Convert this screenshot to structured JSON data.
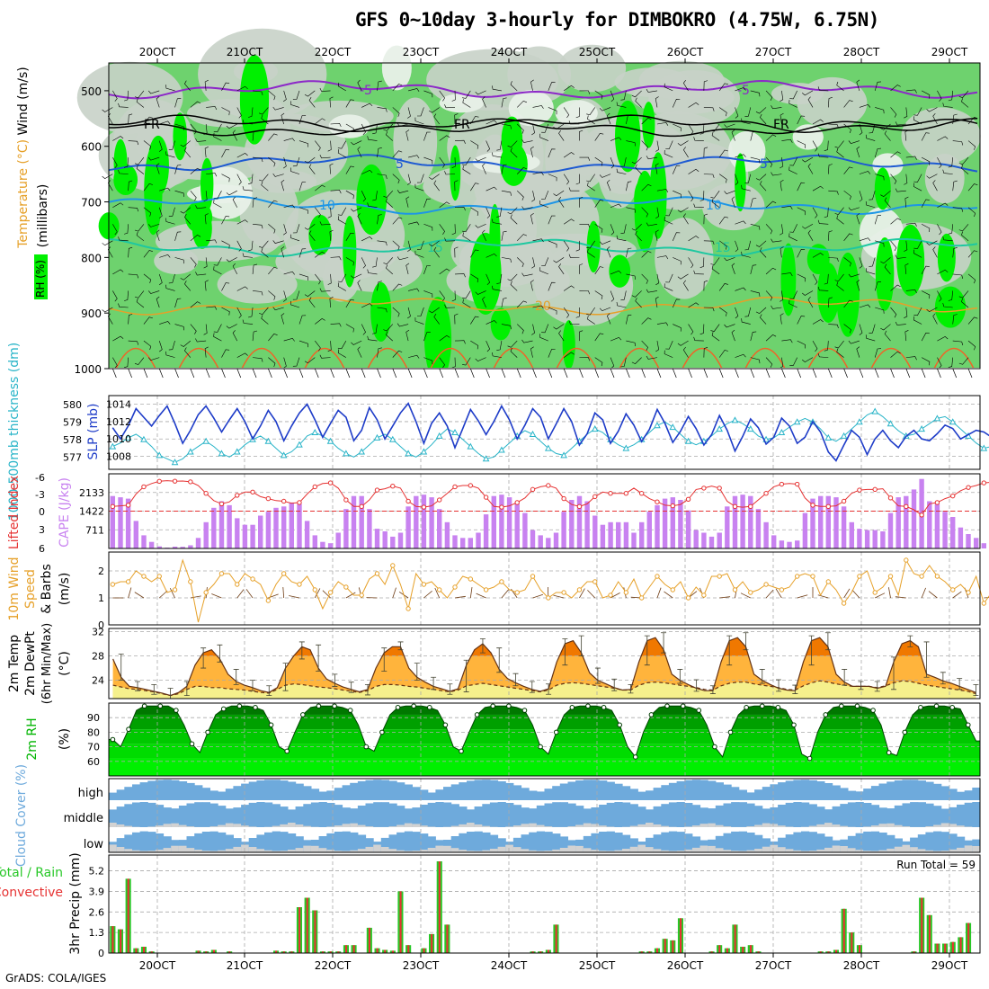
{
  "title": "GFS 0~10day 3-hourly for DIMBOKRO (4.75W, 6.75N)",
  "footer": "GrADS: COLA/IGES",
  "colors": {
    "rh_light": "#c8d2c8",
    "rh_green": "#6ed26e",
    "rh_bright": "#00f000",
    "slp": "#1e3cc8",
    "thickness": "#28b4c8",
    "lifted_index": "#e63232",
    "cape": "#c882f0",
    "wind10m": "#e6a028",
    "temp_hot": "#f07800",
    "temp_mid": "#ffb43c",
    "dewpt_fill": "#f5f08c",
    "rh2m": "#00b400",
    "cloud": "#6eaadc",
    "precip_total": "#28c828",
    "precip_conv": "#e63232"
  },
  "chart_data": [
    {
      "type": "heatmap",
      "name": "upper-air",
      "x_dates": [
        "20OCT",
        "21OCT",
        "22OCT",
        "23OCT",
        "24OCT",
        "25OCT",
        "26OCT",
        "27OCT",
        "28OCT",
        "29OCT"
      ],
      "y_ticks": [
        500,
        600,
        700,
        800,
        900,
        1000
      ],
      "ylabel": "(millibars)",
      "labels": {
        "wind": "Wind (m/s)",
        "temperature": "Temperature (°C)",
        "rh": "RH (%)"
      },
      "isotherm_labels": [
        "-5",
        "FR",
        "5",
        "10",
        "15",
        "20"
      ],
      "ylim": [
        1000,
        450
      ]
    },
    {
      "type": "line",
      "name": "slp-thickness",
      "left_ylabel": "1000-500mb thickness (dm)",
      "right_ylabel": "SLP (mb)",
      "left_ticks": [
        577,
        578,
        579,
        580
      ],
      "right_ticks": [
        1008,
        1010,
        1012,
        1014
      ],
      "series": [
        {
          "name": "SLP",
          "values": [
            1011.3,
            1010.0,
            1011.5,
            1013.5,
            1012.5,
            1011.5,
            1012.7,
            1013.8,
            1011.8,
            1009.5,
            1011.0,
            1012.8,
            1013.8,
            1012.4,
            1010.8,
            1012.2,
            1013.5,
            1012.0,
            1010.0,
            1011.5,
            1013.3,
            1012.0,
            1009.8,
            1011.5,
            1013.0,
            1014.0,
            1012.2,
            1010.2,
            1011.8,
            1013.3,
            1012.5,
            1009.8,
            1011.0,
            1013.6,
            1012.2,
            1010.0,
            1011.5,
            1013.0,
            1014.1,
            1012.0,
            1009.5,
            1011.8,
            1013.0,
            1011.5,
            1009.0,
            1011.2,
            1013.4,
            1012.1,
            1010.5,
            1012.0,
            1013.8,
            1012.2,
            1010.0,
            1011.6,
            1013.5,
            1012.5,
            1010.0,
            1011.7,
            1013.5,
            1012.0,
            1009.3,
            1010.6,
            1013.0,
            1012.2,
            1009.5,
            1010.9,
            1012.9,
            1011.6,
            1009.7,
            1011.1,
            1013.4,
            1011.8,
            1009.6,
            1010.9,
            1012.6,
            1011.2,
            1009.3,
            1010.5,
            1012.7,
            1011.0,
            1008.6,
            1010.3,
            1012.3,
            1011.3,
            1009.4,
            1010.2,
            1012.4,
            1011.5,
            1009.5,
            1010.2,
            1012.0,
            1010.8,
            1008.5,
            1007.5,
            1009.3,
            1011.0,
            1010.2,
            1008.2,
            1010.0,
            1011.0,
            1009.8,
            1009.0,
            1010.3,
            1011.0,
            1010.0,
            1009.8,
            1010.6,
            1011.6,
            1011.2,
            1010.0,
            1010.5,
            1011.0,
            1010.8,
            1010.2,
            1010.0,
            1011.4
          ]
        },
        {
          "name": "Thickness",
          "values": [
            577.6,
            577.8,
            578.1,
            578.3,
            578.0,
            577.6,
            577.1,
            576.9,
            576.7,
            576.9,
            577.3,
            577.6,
            577.9,
            577.6,
            577.2,
            577.0,
            577.3,
            577.7,
            578.0,
            578.2,
            577.9,
            577.5,
            577.1,
            577.3,
            577.7,
            578.2,
            578.4,
            578.2,
            577.9,
            577.5,
            577.2,
            577.0,
            577.3,
            577.7,
            578.1,
            578.3,
            578.0,
            577.6,
            577.2,
            577.0,
            577.3,
            577.7,
            578.2,
            578.6,
            578.4,
            578.0,
            577.6,
            577.2,
            576.9,
            577.0,
            577.4,
            577.8,
            578.2,
            578.5,
            578.3,
            577.9,
            577.5,
            577.2,
            577.1,
            577.5,
            577.9,
            578.3,
            578.6,
            578.4,
            578.0,
            577.7,
            577.5,
            577.7,
            578.0,
            578.4,
            578.8,
            579.0,
            578.7,
            578.3,
            577.9,
            577.7,
            577.9,
            578.2,
            578.6,
            578.9,
            579.1,
            578.9,
            578.6,
            578.2,
            578.0,
            578.1,
            578.4,
            578.7,
            579.0,
            579.2,
            579.0,
            578.6,
            578.1,
            577.9,
            578.2,
            578.6,
            579.0,
            579.4,
            579.6,
            579.3,
            578.9,
            578.5,
            578.2,
            578.3,
            578.6,
            578.9,
            579.2,
            579.3,
            579.0,
            578.6,
            578.2,
            577.8,
            577.5,
            577.6,
            577.9,
            578.1
          ]
        }
      ]
    },
    {
      "type": "bar",
      "name": "cape-li",
      "left_ylabel": "Lifted Index",
      "right_ylabel": "CAPE (J/kg)",
      "left_ticks": [
        "-6",
        "-3",
        "0",
        "3",
        "6"
      ],
      "right_ticks": [
        "711",
        "1422",
        "2133"
      ],
      "cape": [
        2000,
        1950,
        1900,
        1050,
        500,
        250,
        80,
        30,
        70,
        60,
        120,
        400,
        1000,
        1550,
        1800,
        1650,
        1150,
        900,
        900,
        1250,
        1400,
        1550,
        1600,
        1750,
        1700,
        1050,
        500,
        250,
        200,
        600,
        1500,
        2000,
        2000,
        1500,
        750,
        650,
        450,
        600,
        1600,
        2000,
        2050,
        1950,
        1500,
        1000,
        500,
        400,
        400,
        600,
        1300,
        2000,
        2050,
        1950,
        1700,
        1350,
        700,
        500,
        400,
        600,
        1400,
        1850,
        2000,
        1800,
        1250,
        900,
        1000,
        1000,
        1000,
        600,
        1000,
        1400,
        1650,
        1900,
        1950,
        1850,
        1450,
        700,
        600,
        450,
        600,
        1600,
        2000,
        2050,
        2000,
        1500,
        1000,
        500,
        300,
        250,
        300,
        1350,
        1900,
        2000,
        2000,
        1950,
        1600,
        1000,
        750,
        700,
        700,
        650,
        1350,
        1950,
        2000,
        2250,
        2650,
        1800,
        1700,
        1400,
        1200,
        800,
        550,
        400,
        200,
        150
      ]
    },
    {
      "type": "line",
      "name": "wind10m",
      "ylabel": "10m Wind Speed & Barbs (m/s)",
      "ticks": [
        "0",
        "1",
        "2"
      ],
      "series": [
        {
          "name": "Speed",
          "values": [
            1.5,
            1.6,
            1.6,
            2.0,
            1.8,
            1.6,
            1.8,
            1.2,
            1.3,
            2.4,
            1.6,
            0.1,
            1.2,
            1.5,
            1.9,
            1.9,
            1.5,
            1.9,
            1.7,
            1.5,
            0.9,
            1.5,
            1.9,
            1.6,
            1.5,
            1.8,
            1.3,
            0.6,
            1.2,
            1.6,
            1.4,
            1.1,
            1.1,
            1.7,
            1.9,
            1.5,
            2.2,
            1.5,
            0.6,
            1.9,
            1.5,
            1.6,
            1.3,
            1.0,
            1.4,
            1.8,
            1.7,
            1.5,
            1.3,
            1.4,
            1.6,
            1.3,
            1.2,
            1.3,
            1.8,
            1.3,
            1.0,
            1.2,
            1.2,
            1.0,
            1.3,
            1.6,
            1.6,
            1.0,
            1.1,
            1.6,
            1.2,
            1.7,
            1.0,
            1.4,
            1.8,
            1.5,
            1.3,
            1.6,
            1.0,
            1.4,
            1.1,
            1.8,
            1.8,
            1.9,
            1.3,
            1.6,
            1.2,
            1.3,
            1.5,
            1.4,
            1.3,
            1.4,
            1.8,
            1.9,
            1.8,
            1.1,
            1.6,
            1.3,
            0.8,
            1.2,
            1.8,
            2.0,
            1.2,
            1.4,
            1.8,
            1.1,
            2.4,
            1.9,
            1.8,
            2.2,
            1.8,
            1.6,
            1.3,
            1.5,
            1.2,
            1.8,
            0.8,
            1.2,
            1.3,
            1.3
          ]
        }
      ]
    },
    {
      "type": "area",
      "name": "temp2m",
      "ylabel": "2m Temp 2m DewPt (6hr Min/Max) (°C)",
      "ticks": [
        "24",
        "28",
        "32"
      ],
      "series": [
        {
          "name": "Temp",
          "values": [
            27.5,
            24.5,
            23.0,
            22.8,
            22.5,
            22.2,
            21.9,
            21.5,
            22.0,
            23.0,
            26.5,
            28.5,
            29.0,
            27.5,
            25.0,
            23.8,
            23.2,
            22.8,
            22.3,
            22.0,
            22.8,
            26.0,
            28.0,
            29.5,
            29.0,
            26.0,
            24.2,
            23.5,
            22.9,
            22.5,
            22.1,
            22.5,
            26.0,
            28.5,
            29.5,
            29.5,
            26.0,
            24.5,
            23.7,
            23.0,
            22.6,
            22.2,
            22.6,
            26.5,
            29.0,
            30.0,
            28.5,
            25.8,
            24.3,
            23.6,
            23.0,
            22.5,
            22.2,
            22.6,
            27.0,
            30.0,
            30.5,
            28.5,
            25.2,
            24.0,
            23.4,
            22.8,
            22.4,
            22.5,
            27.0,
            30.5,
            31.0,
            29.0,
            25.0,
            24.0,
            23.3,
            22.7,
            22.3,
            22.3,
            27.0,
            30.5,
            31.0,
            29.5,
            25.0,
            24.0,
            23.3,
            22.7,
            22.4,
            22.3,
            27.0,
            30.5,
            31.0,
            29.5,
            25.0,
            23.7,
            23.0,
            23.0,
            23.0,
            22.7,
            23.0,
            27.0,
            30.0,
            30.5,
            29.5,
            25.0,
            24.5,
            23.9,
            23.5,
            23.0,
            22.5,
            22.0
          ]
        },
        {
          "name": "DewPt",
          "values": [
            23.2,
            22.9,
            22.6,
            22.5,
            22.3,
            22.1,
            21.8,
            21.5,
            21.8,
            22.5,
            23.0,
            23.0,
            22.8,
            22.8,
            22.6,
            22.5,
            22.4,
            22.2,
            22.0,
            21.9,
            22.5,
            23.2,
            23.4,
            23.3,
            23.1,
            22.9,
            22.8,
            22.6,
            22.4,
            22.2,
            22.0,
            22.3,
            23.0,
            23.3,
            23.3,
            23.2,
            23.0,
            22.9,
            22.7,
            22.5,
            22.3,
            22.1,
            22.4,
            23.1,
            23.3,
            23.5,
            23.3,
            23.1,
            22.9,
            22.7,
            22.5,
            22.3,
            22.1,
            22.4,
            23.2,
            23.5,
            23.6,
            23.5,
            23.3,
            23.1,
            22.9,
            22.7,
            22.4,
            22.4,
            23.2,
            23.6,
            23.7,
            23.6,
            23.4,
            23.2,
            23.0,
            22.8,
            22.5,
            22.4,
            23.1,
            23.5,
            23.7,
            23.7,
            23.4,
            23.2,
            23.0,
            22.8,
            22.5,
            22.4,
            23.1,
            23.6,
            23.9,
            23.7,
            23.4,
            23.2,
            23.0,
            23.0,
            23.0,
            22.8,
            23.1,
            23.6,
            23.9,
            23.8,
            23.5,
            23.2,
            23.0,
            22.8,
            22.6,
            22.4,
            22.2,
            21.8
          ]
        }
      ]
    },
    {
      "type": "area",
      "name": "rh2m",
      "ylabel": "2m RH (%)",
      "ticks": [
        "60",
        "70",
        "80",
        "90"
      ],
      "series": [
        {
          "name": "RH",
          "values": [
            75,
            70,
            82,
            95,
            98,
            98,
            98,
            98,
            95,
            85,
            72,
            66,
            80,
            92,
            96,
            98,
            98,
            98,
            97,
            95,
            85,
            70,
            67,
            80,
            92,
            97,
            98,
            98,
            98,
            97,
            95,
            85,
            70,
            67,
            80,
            92,
            97,
            98,
            98,
            98,
            97,
            95,
            85,
            70,
            67,
            80,
            92,
            97,
            98,
            98,
            98,
            97,
            95,
            85,
            70,
            65,
            80,
            92,
            97,
            98,
            98,
            98,
            97,
            95,
            85,
            70,
            63,
            80,
            92,
            97,
            98,
            98,
            98,
            97,
            95,
            85,
            70,
            63,
            80,
            92,
            97,
            98,
            98,
            98,
            97,
            95,
            85,
            65,
            62,
            80,
            92,
            97,
            98,
            98,
            98,
            97,
            95,
            85,
            66,
            64,
            80,
            92,
            97,
            98,
            98,
            98,
            97,
            96,
            85,
            74
          ]
        }
      ]
    },
    {
      "type": "bar",
      "name": "cloud-cover",
      "ylabel": "Cloud Cover (%)",
      "layers": [
        "high",
        "middle",
        "low"
      ]
    },
    {
      "type": "bar",
      "name": "precip",
      "ylabel": "3hr Precip (mm)",
      "left_label": "Total / Rain",
      "left_label2": "Convective",
      "ticks": [
        "0",
        "1.3",
        "2.6",
        "3.9",
        "5.2"
      ],
      "annotation": "Run Total = 59",
      "values": [
        1.7,
        1.5,
        4.7,
        0.3,
        0.4,
        0.1,
        0,
        0,
        0,
        0,
        0,
        0.15,
        0.1,
        0.2,
        0,
        0.1,
        0,
        0,
        0,
        0,
        0,
        0.15,
        0.1,
        0.1,
        2.9,
        3.5,
        2.7,
        0.1,
        0.1,
        0.1,
        0.5,
        0.5,
        0,
        1.6,
        0.3,
        0.2,
        0.15,
        3.9,
        0.5,
        0,
        0.3,
        1.2,
        5.8,
        1.8,
        0,
        0,
        0,
        0,
        0,
        0,
        0,
        0,
        0,
        0,
        0.1,
        0.1,
        0.2,
        1.8,
        0,
        0,
        0,
        0,
        0,
        0,
        0,
        0,
        0,
        0,
        0.1,
        0.1,
        0.3,
        0.9,
        0.8,
        2.2,
        0,
        0,
        0,
        0.1,
        0.5,
        0.3,
        1.8,
        0.4,
        0.5,
        0.1,
        0,
        0,
        0,
        0,
        0,
        0,
        0,
        0.1,
        0.1,
        0.2,
        2.8,
        1.3,
        0.5,
        0,
        0,
        0,
        0,
        0,
        0,
        0.1,
        3.5,
        2.4,
        0.6,
        0.6,
        0.7,
        1.0,
        1.9,
        0
      ]
    }
  ]
}
